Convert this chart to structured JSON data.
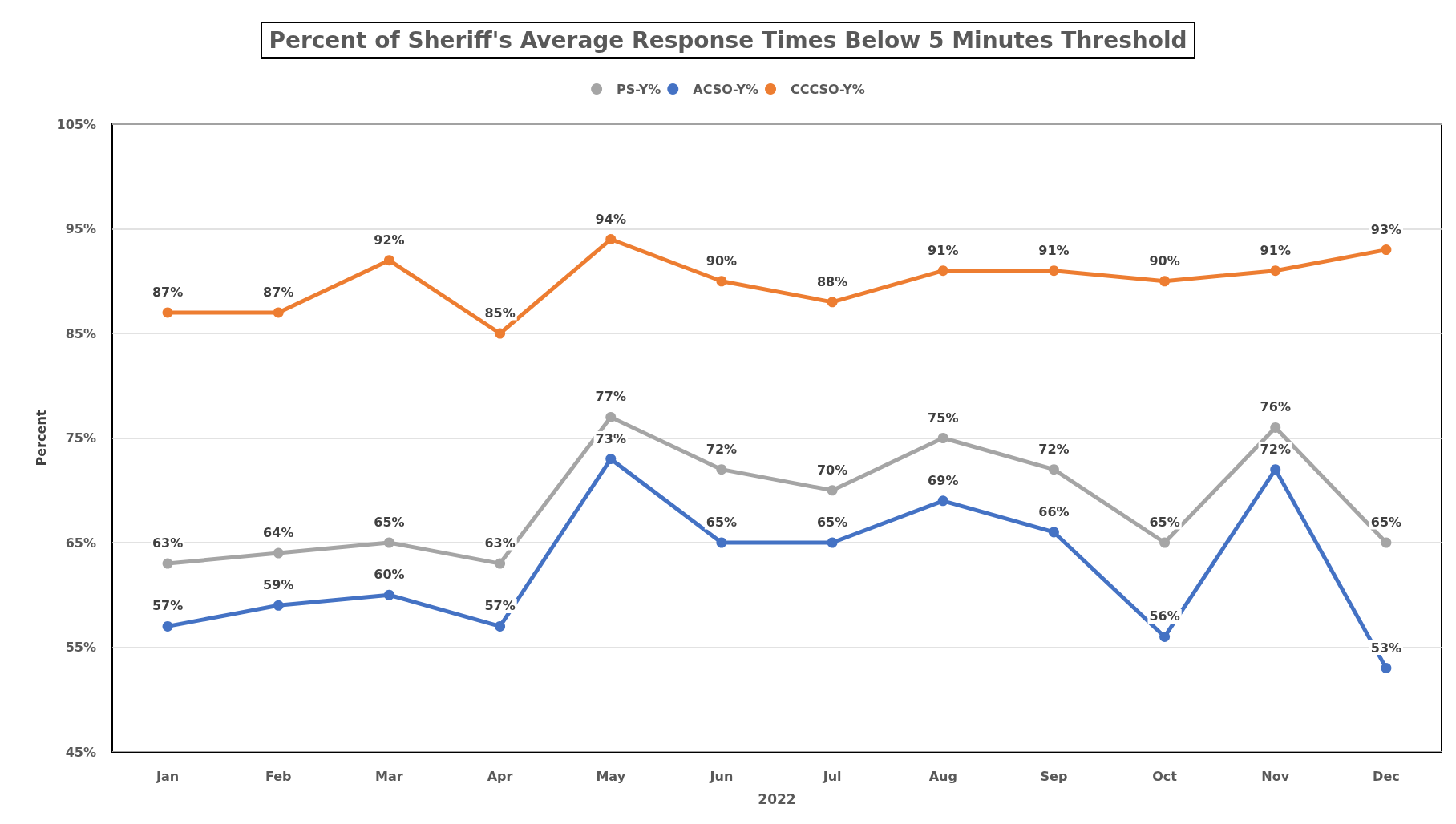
{
  "chart_data": {
    "type": "line",
    "title": "Percent of Sheriff's Average Response Times Below 5 Minutes Threshold",
    "xlabel": "2022",
    "ylabel": "Percent",
    "categories": [
      "Jan",
      "Feb",
      "Mar",
      "Apr",
      "May",
      "Jun",
      "Jul",
      "Aug",
      "Sep",
      "Oct",
      "Nov",
      "Dec"
    ],
    "series": [
      {
        "name": "PS-Y%",
        "color": "#a5a5a5",
        "values": [
          63,
          64,
          65,
          63,
          77,
          72,
          70,
          75,
          72,
          65,
          76,
          65
        ],
        "value_labels": [
          "63%",
          "64%",
          "65%",
          "63%",
          "77%",
          "72%",
          "70%",
          "75%",
          "72%",
          "65%",
          "76%",
          "65%"
        ]
      },
      {
        "name": "ACSO-Y%",
        "color": "#4472c4",
        "values": [
          57,
          59,
          60,
          57,
          73,
          65,
          65,
          69,
          66,
          56,
          72,
          53
        ],
        "value_labels": [
          "57%",
          "59%",
          "60%",
          "57%",
          "73%",
          "65%",
          "65%",
          "69%",
          "66%",
          "56%",
          "72%",
          "53%"
        ]
      },
      {
        "name": "CCCSO-Y%",
        "color": "#ed7d31",
        "values": [
          87,
          87,
          92,
          85,
          94,
          90,
          88,
          91,
          91,
          90,
          91,
          93
        ],
        "value_labels": [
          "87%",
          "87%",
          "92%",
          "85%",
          "94%",
          "90%",
          "88%",
          "91%",
          "91%",
          "90%",
          "91%",
          "93%"
        ]
      }
    ],
    "ylim": [
      45,
      105
    ],
    "yticks": [
      {
        "value": 45,
        "label": "45%"
      },
      {
        "value": 55,
        "label": "55%"
      },
      {
        "value": 65,
        "label": "65%"
      },
      {
        "value": 75,
        "label": "75%"
      },
      {
        "value": 85,
        "label": "85%"
      },
      {
        "value": 95,
        "label": "95%"
      },
      {
        "value": 105,
        "label": "105%"
      }
    ],
    "grid": "y",
    "legend": "top",
    "marker": "circle",
    "line_style": "solid"
  }
}
